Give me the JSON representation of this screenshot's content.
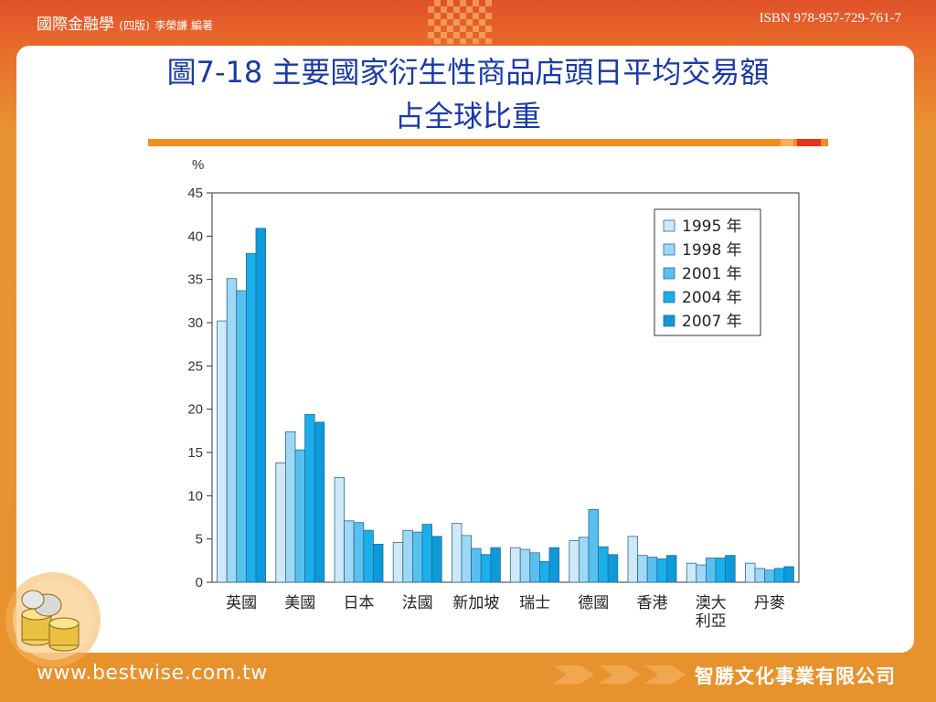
{
  "header": {
    "book_title": "國際金融學",
    "edition": "(四版)",
    "author": "李榮謙 編著",
    "isbn": "ISBN 978-957-729-761-7"
  },
  "slide": {
    "title_line1": "圖7-18 主要國家衍生性商品店頭日平均交易額",
    "title_line2": "占全球比重"
  },
  "footer": {
    "url": "www.bestwise.com.tw",
    "company": "智勝文化事業有限公司"
  },
  "colors": {
    "accent_orange": "#f28c1e",
    "title_blue": "#1a3aa8",
    "series": [
      "#cfe9f8",
      "#9fd8f4",
      "#58c0ee",
      "#1aaeea",
      "#0c9ad8"
    ]
  },
  "chart_data": {
    "type": "bar",
    "ylabel": "%",
    "ylim": [
      0,
      45
    ],
    "yticks": [
      0,
      5,
      10,
      15,
      20,
      25,
      30,
      35,
      40,
      45
    ],
    "categories": [
      "英國",
      "美國",
      "日本",
      "法國",
      "新加坡",
      "瑞士",
      "德國",
      "香港",
      "澳大利亞",
      "丹麥"
    ],
    "category_lines": [
      [
        "英國"
      ],
      [
        "美國"
      ],
      [
        "日本"
      ],
      [
        "法國"
      ],
      [
        "新加坡"
      ],
      [
        "瑞士"
      ],
      [
        "德國"
      ],
      [
        "香港"
      ],
      [
        "澳大",
        "利亞"
      ],
      [
        "丹麥"
      ]
    ],
    "series": [
      {
        "name": "1995 年",
        "values": [
          30.2,
          13.8,
          12.1,
          4.6,
          6.8,
          4.0,
          4.8,
          5.3,
          2.2,
          2.2
        ]
      },
      {
        "name": "1998 年",
        "values": [
          35.1,
          17.4,
          7.1,
          6.0,
          5.4,
          3.8,
          5.2,
          3.1,
          2.0,
          1.6
        ]
      },
      {
        "name": "2001 年",
        "values": [
          33.7,
          15.3,
          6.9,
          5.8,
          3.9,
          3.4,
          8.4,
          2.9,
          2.8,
          1.4
        ]
      },
      {
        "name": "2004 年",
        "values": [
          38.0,
          19.4,
          6.0,
          6.7,
          3.2,
          2.4,
          4.1,
          2.7,
          2.8,
          1.6
        ]
      },
      {
        "name": "2007 年",
        "values": [
          40.9,
          18.5,
          4.4,
          5.3,
          4.0,
          4.0,
          3.2,
          3.1,
          3.1,
          1.8
        ]
      }
    ],
    "legend_position": "top-right",
    "grid": false
  }
}
